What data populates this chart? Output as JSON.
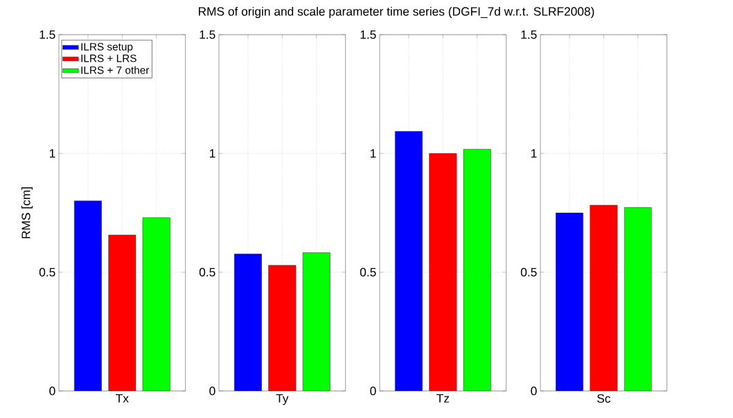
{
  "chart_data": [
    {
      "type": "bar",
      "ylabel": "RMS [cm]",
      "categories": [
        "Tx"
      ],
      "series": [
        {
          "name": "ILRS setup",
          "color": "#0000ff",
          "values": [
            0.8
          ]
        },
        {
          "name": "ILRS + LRS",
          "color": "#ff0000",
          "values": [
            0.657
          ]
        },
        {
          "name": "ILRS + 7 other",
          "color": "#00ff00",
          "values": [
            0.73
          ]
        }
      ],
      "ylim": [
        0,
        1.5
      ],
      "yticks": [
        0,
        0.5,
        1,
        1.5
      ],
      "grid": true,
      "legend": "top left"
    },
    {
      "type": "bar",
      "categories": [
        "Ty"
      ],
      "series": [
        {
          "color": "#0000ff",
          "values": [
            0.577
          ]
        },
        {
          "color": "#ff0000",
          "values": [
            0.529
          ]
        },
        {
          "color": "#00ff00",
          "values": [
            0.582
          ]
        }
      ],
      "ylim": [
        0,
        1.5
      ],
      "yticks": [
        0,
        0.5,
        1,
        1.5
      ],
      "grid": true
    },
    {
      "type": "bar",
      "title": "RMS of origin and scale parameter time series (DGFI_7d w.r.t. SLRF2008)",
      "categories": [
        "Tz"
      ],
      "series": [
        {
          "color": "#0000ff",
          "values": [
            1.093
          ]
        },
        {
          "color": "#ff0000",
          "values": [
            1.0
          ]
        },
        {
          "color": "#00ff00",
          "values": [
            1.018
          ]
        }
      ],
      "ylim": [
        0,
        1.5
      ],
      "yticks": [
        0,
        0.5,
        1,
        1.5
      ],
      "grid": true
    },
    {
      "type": "bar",
      "categories": [
        "Sc"
      ],
      "series": [
        {
          "color": "#0000ff",
          "values": [
            0.75
          ]
        },
        {
          "color": "#ff0000",
          "values": [
            0.782
          ]
        },
        {
          "color": "#00ff00",
          "values": [
            0.773
          ]
        }
      ],
      "ylim": [
        0,
        1.5
      ],
      "yticks": [
        0,
        0.5,
        1,
        1.5
      ],
      "grid": true
    }
  ]
}
